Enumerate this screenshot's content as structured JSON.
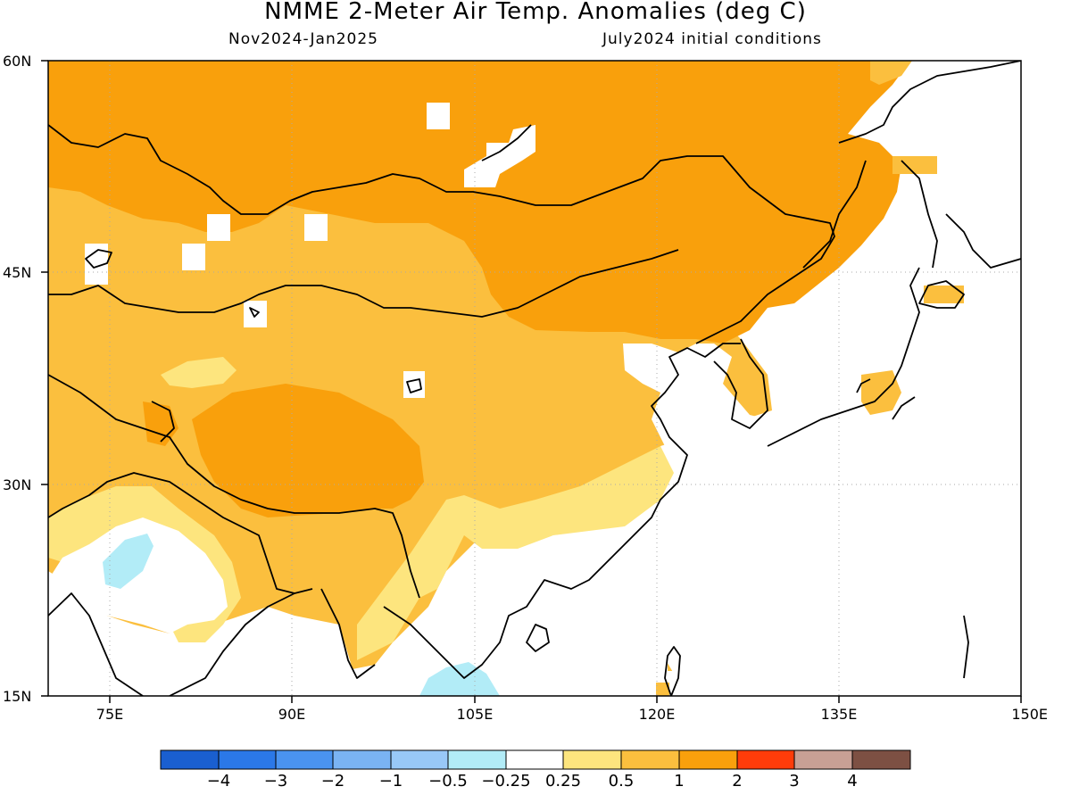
{
  "header": {
    "title": "NMME 2-Meter Air Temp. Anomalies (deg C)",
    "period": "Nov2024-Jan2025",
    "init": "July2024 initial conditions"
  },
  "map": {
    "lon_range": [
      70,
      150
    ],
    "lat_range": [
      15,
      60
    ],
    "lat_ticks": [
      {
        "value": 60,
        "label": "60N"
      },
      {
        "value": 45,
        "label": "45N"
      },
      {
        "value": 30,
        "label": "30N"
      },
      {
        "value": 15,
        "label": "15N"
      }
    ],
    "lon_ticks": [
      {
        "value": 75,
        "label": "75E"
      },
      {
        "value": 90,
        "label": "90E"
      },
      {
        "value": 105,
        "label": "105E"
      },
      {
        "value": 120,
        "label": "120E"
      },
      {
        "value": 135,
        "label": "135E"
      },
      {
        "value": 150,
        "label": "150E"
      }
    ],
    "grid": "dotted"
  },
  "colorbar": {
    "colors": [
      "#1a5fd0",
      "#2b78e8",
      "#4a93f0",
      "#7ab3f3",
      "#98c8f7",
      "#b2ecf7",
      "#ffffff",
      "#fde57e",
      "#fbbf3e",
      "#f9a00c",
      "#ff3c0a",
      "#c8a095",
      "#7d5043"
    ],
    "labels": [
      "-4",
      "-3",
      "-2",
      "-1",
      "-0.5",
      "-0.25",
      "0.25",
      "0.5",
      "1",
      "2",
      "3",
      "4"
    ],
    "colorbar_value_ranges": [
      "< -4",
      "-4 to -3",
      "-3 to -2",
      "-2 to -1",
      "-1 to -0.5",
      "-0.5 to -0.25",
      "-0.25 to 0.25",
      "0.25 to 0.5",
      "0.5 to 1",
      "1 to 2",
      "2 to 3",
      "3 to 4",
      "> 4"
    ]
  },
  "anomaly_regions": [
    {
      "name": "siberia-mongolia",
      "category": "1 to 2",
      "color": "#f9a00c"
    },
    {
      "name": "china-interior",
      "category": "0.5 to 1",
      "color": "#fbbf3e"
    },
    {
      "name": "tibet-core",
      "category": "1 to 2",
      "color": "#f9a00c"
    },
    {
      "name": "south-china-band",
      "category": "0.25 to 0.5",
      "color": "#fde57e"
    },
    {
      "name": "india-east",
      "category": "0.5 to 1",
      "color": "#fbbf3e"
    },
    {
      "name": "india-patch",
      "category": "-0.5 to -0.25",
      "color": "#b2ecf7"
    },
    {
      "name": "indochina-patch",
      "category": "-0.5 to -0.25",
      "color": "#b2ecf7"
    }
  ]
}
